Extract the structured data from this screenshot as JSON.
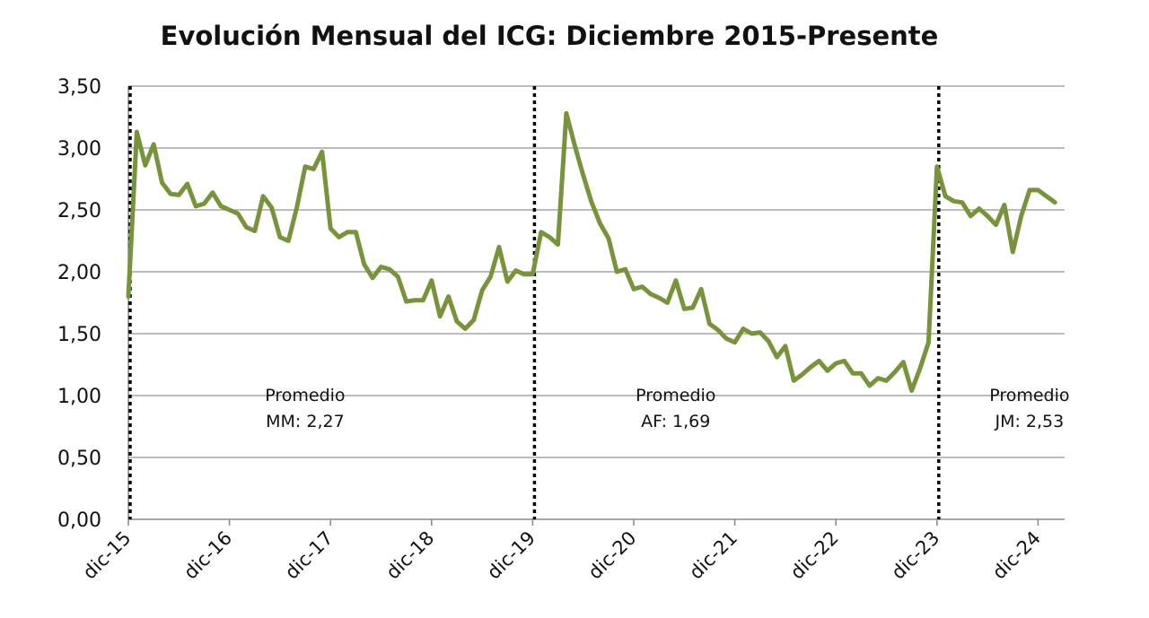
{
  "chart_data": {
    "type": "line",
    "title": "Evolución Mensual del ICG: Diciembre 2015-Presente",
    "xlabel": "",
    "ylabel": "",
    "ylim": [
      0,
      3.5
    ],
    "ytick_labels": [
      "0,00",
      "0,50",
      "1,00",
      "1,50",
      "2,00",
      "2,50",
      "3,00",
      "3,50"
    ],
    "yticks": [
      0,
      0.5,
      1,
      1.5,
      2,
      2.5,
      3,
      3.5
    ],
    "xtick_labels": [
      "dic-15",
      "dic-16",
      "dic-17",
      "dic-18",
      "dic-19",
      "dic-20",
      "dic-21",
      "dic-22",
      "dic-23",
      "dic-24"
    ],
    "grid": true,
    "line_color": "#77933c",
    "vertical_markers": [
      "dic-15",
      "dic-19",
      "dic-23"
    ],
    "annotations": [
      {
        "line1": "Promedio",
        "line2": "MM: 2,27",
        "x_month": 18,
        "y": 0.87
      },
      {
        "line1": "Promedio",
        "line2": "AF: 1,69",
        "x_month": 62,
        "y": 0.87
      },
      {
        "line1": "Promedio",
        "line2": "JM: 2,53",
        "x_month": 104,
        "y": 0.87
      }
    ],
    "series": [
      {
        "start": "dic-15",
        "values": [
          1.8,
          3.13,
          2.86,
          3.03,
          2.72,
          2.63,
          2.62,
          2.71,
          2.53,
          2.55,
          2.64,
          2.53,
          2.5,
          2.47,
          2.36,
          2.33,
          2.61,
          2.52,
          2.28,
          2.25,
          2.52,
          2.85,
          2.83,
          2.97,
          2.35,
          2.28,
          2.32,
          2.32,
          2.06,
          1.95,
          2.04,
          2.02,
          1.96,
          1.76,
          1.77,
          1.77,
          1.93,
          1.64,
          1.8,
          1.6,
          1.54,
          1.61,
          1.85,
          1.96,
          2.2,
          1.92,
          2.01,
          1.98,
          1.98,
          2.32,
          2.28,
          2.22,
          3.28,
          3.02,
          2.78,
          2.56,
          2.39,
          2.27,
          2.0,
          2.02,
          1.86,
          1.88,
          1.82,
          1.79,
          1.75,
          1.93,
          1.7,
          1.71,
          1.86,
          1.58,
          1.53,
          1.46,
          1.43,
          1.54,
          1.5,
          1.51,
          1.44,
          1.31,
          1.4,
          1.12,
          1.17,
          1.23,
          1.28,
          1.2,
          1.26,
          1.28,
          1.18,
          1.18,
          1.08,
          1.14,
          1.12,
          1.19,
          1.27,
          1.04,
          1.22,
          1.43,
          2.85,
          2.61,
          2.57,
          2.56,
          2.45,
          2.51,
          2.45,
          2.38,
          2.54,
          2.16,
          2.45,
          2.66,
          2.66,
          2.61,
          2.56
        ]
      }
    ]
  }
}
